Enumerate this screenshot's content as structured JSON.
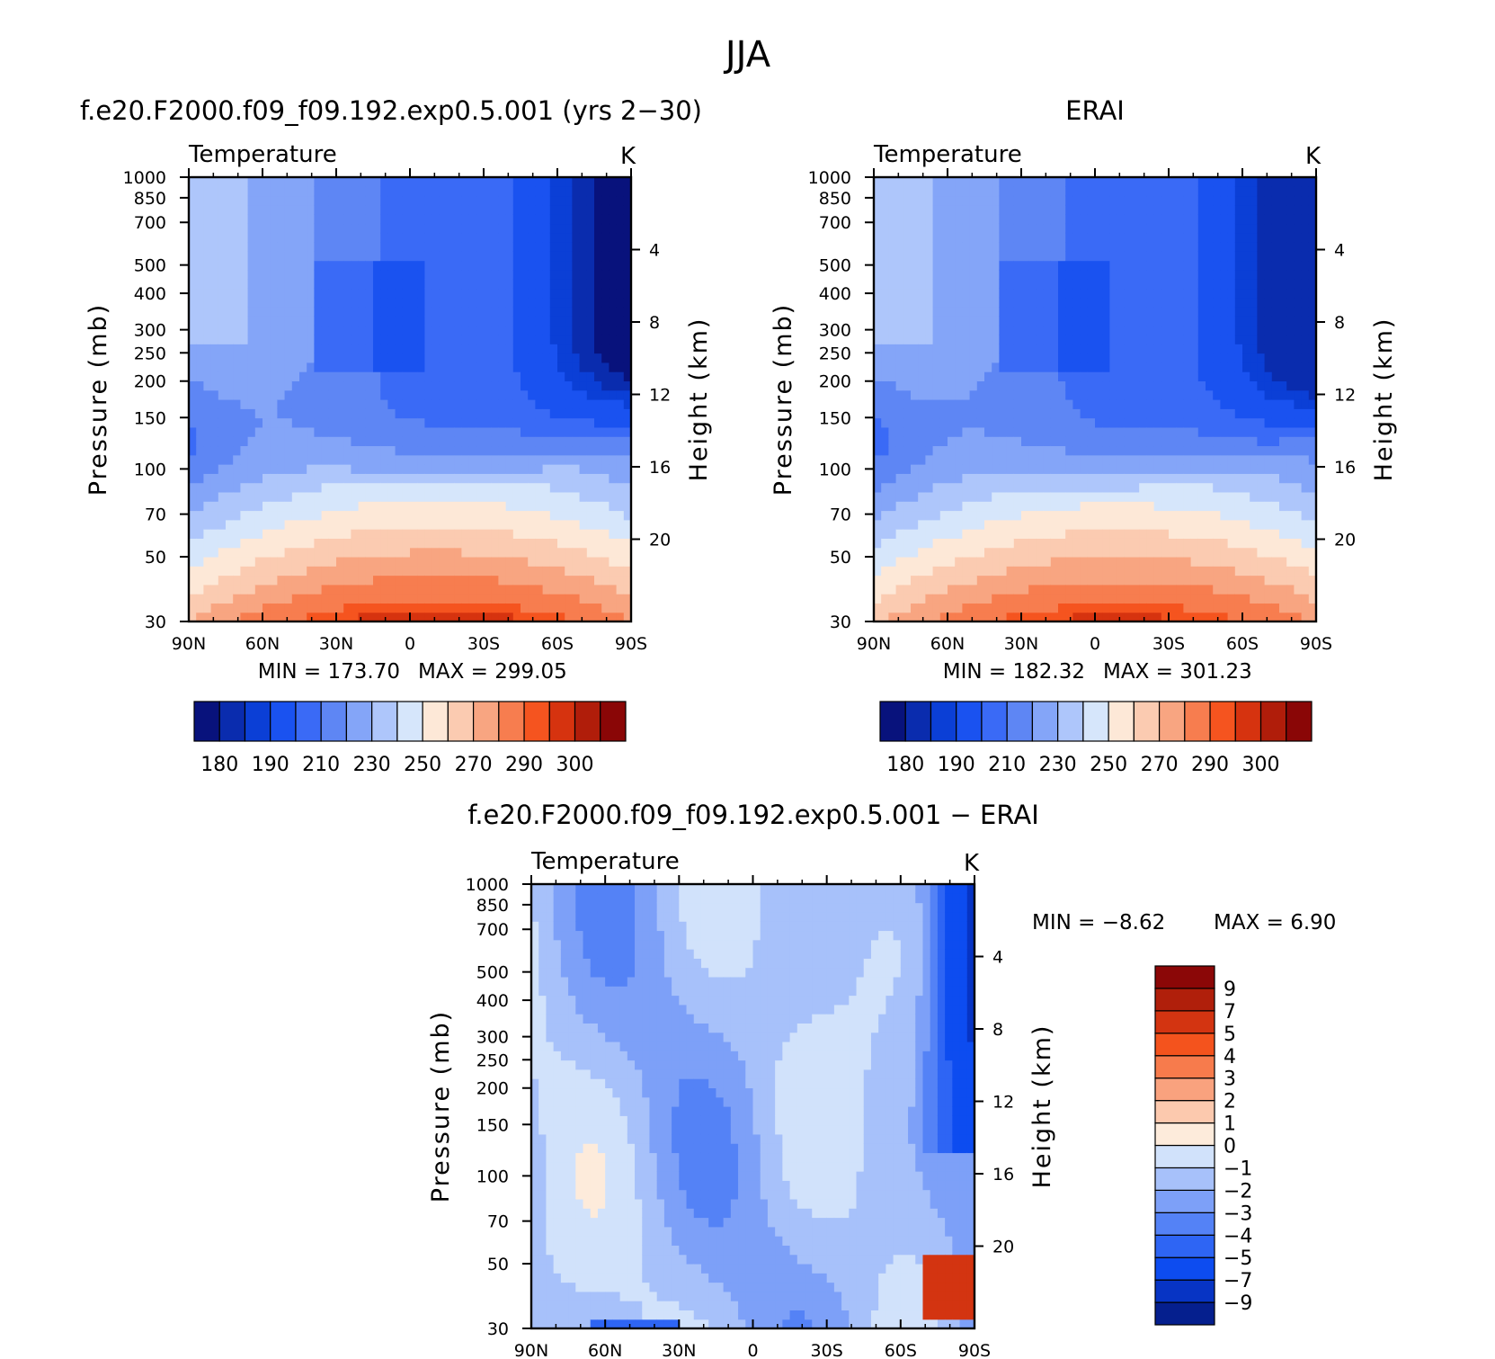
{
  "figure": {
    "title": "JJA"
  },
  "chart_data": [
    {
      "type": "heatmap",
      "title": "f.e20.F2000.f09_f09.192.exp0.5.001 (yrs 2−30)",
      "subtitle": "Temperature",
      "units": "K",
      "xlabel": "",
      "ylabel": "Pressure (mb)",
      "y2label": "Height (km)",
      "x_ticks": [
        "90N",
        "60N",
        "30N",
        "0",
        "30S",
        "60S",
        "90S"
      ],
      "x_values": [
        90,
        60,
        30,
        0,
        -30,
        -60,
        -90
      ],
      "y_ticks": [
        30,
        50,
        70,
        100,
        150,
        200,
        250,
        300,
        400,
        500,
        700,
        850,
        1000
      ],
      "y_log": true,
      "ylim": [
        1000,
        30
      ],
      "y2_ticks": [
        20,
        16,
        12,
        8,
        4
      ],
      "min_label": "MIN = 173.70",
      "max_label": "MAX = 299.05",
      "min": 173.7,
      "max": 299.05,
      "colorbar_labels": [
        "180",
        "190",
        "210",
        "230",
        "250",
        "270",
        "290",
        "300"
      ],
      "levels": [
        180,
        185,
        190,
        200,
        210,
        220,
        230,
        240,
        250,
        260,
        270,
        280,
        290,
        295,
        300
      ]
    },
    {
      "type": "heatmap",
      "title": "ERAI",
      "subtitle": "Temperature",
      "units": "K",
      "xlabel": "",
      "ylabel": "Pressure (mb)",
      "y2label": "Height (km)",
      "x_ticks": [
        "90N",
        "60N",
        "30N",
        "0",
        "30S",
        "60S",
        "90S"
      ],
      "x_values": [
        90,
        60,
        30,
        0,
        -30,
        -60,
        -90
      ],
      "y_ticks": [
        30,
        50,
        70,
        100,
        150,
        200,
        250,
        300,
        400,
        500,
        700,
        850,
        1000
      ],
      "y_log": true,
      "ylim": [
        1000,
        30
      ],
      "y2_ticks": [
        20,
        16,
        12,
        8,
        4
      ],
      "min_label": "MIN = 182.32",
      "max_label": "MAX = 301.23",
      "min": 182.32,
      "max": 301.23,
      "colorbar_labels": [
        "180",
        "190",
        "210",
        "230",
        "250",
        "270",
        "290",
        "300"
      ],
      "levels": [
        180,
        185,
        190,
        200,
        210,
        220,
        230,
        240,
        250,
        260,
        270,
        280,
        290,
        295,
        300
      ]
    },
    {
      "type": "heatmap",
      "title": "f.e20.F2000.f09_f09.192.exp0.5.001 − ERAI",
      "subtitle": "Temperature",
      "units": "K",
      "xlabel": "",
      "ylabel": "Pressure (mb)",
      "y2label": "Height (km)",
      "x_ticks": [
        "90N",
        "60N",
        "30N",
        "0",
        "30S",
        "60S",
        "90S"
      ],
      "x_values": [
        90,
        60,
        30,
        0,
        -30,
        -60,
        -90
      ],
      "y_ticks": [
        30,
        50,
        70,
        100,
        150,
        200,
        250,
        300,
        400,
        500,
        700,
        850,
        1000
      ],
      "y_log": true,
      "ylim": [
        1000,
        30
      ],
      "y2_ticks": [
        20,
        16,
        12,
        8,
        4
      ],
      "min_label": "MIN = −8.62",
      "max_label": "MAX = 6.90",
      "min": -8.62,
      "max": 6.9,
      "colorbar_labels": [
        "9",
        "7",
        "5",
        "4",
        "3",
        "2",
        "1",
        "0",
        "−1",
        "−2",
        "−3",
        "−4",
        "−5",
        "−7",
        "−9"
      ],
      "levels": [
        -9,
        -7,
        -5,
        -4,
        -3,
        -2,
        -1,
        0,
        1,
        2,
        3,
        4,
        5,
        7,
        9
      ]
    }
  ],
  "colors": {
    "abs_palette": [
      "#08127c",
      "#0a2cae",
      "#0b3fd6",
      "#1a52f0",
      "#3a6af6",
      "#5e86f4",
      "#84a5f8",
      "#aec6fb",
      "#d6e6fb",
      "#fde8d7",
      "#fbcbb1",
      "#f8a581",
      "#f77d4f",
      "#f5541f",
      "#d6330f",
      "#b01d0a",
      "#8a0606"
    ],
    "diff_palette": [
      "#051f8e",
      "#0734c4",
      "#0d4cf0",
      "#2e65f4",
      "#5482f6",
      "#7da0f8",
      "#a7c1fa",
      "#d1e2fb",
      "#fdebdb",
      "#fcc9ae",
      "#f9a27e",
      "#f77b4c",
      "#f4531d",
      "#d33411",
      "#b01f0b",
      "#8b0707"
    ]
  }
}
